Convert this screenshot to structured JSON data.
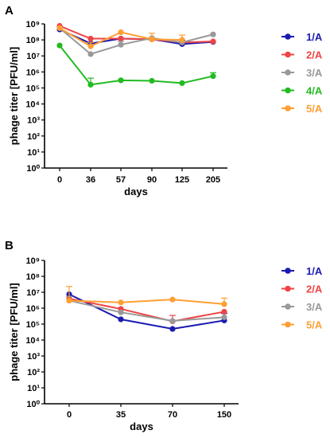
{
  "chart_data": [
    {
      "panel": "A",
      "type": "line",
      "title": "",
      "xlabel": "days",
      "ylabel": "phage titer [PFU/ml]",
      "ylog": true,
      "ylim_exp": [
        0,
        9
      ],
      "ytick_labels": [
        "10⁰",
        "10¹",
        "10²",
        "10³",
        "10⁴",
        "10⁵",
        "10⁶",
        "10⁷",
        "10⁸",
        "10⁹"
      ],
      "categories": [
        "0",
        "36",
        "57",
        "90",
        "125",
        "205"
      ],
      "legend_position": "right",
      "series": [
        {
          "name": "1/A",
          "color": "#1b1bb0",
          "values": [
            450000000,
            60000000,
            120000000,
            110000000,
            55000000,
            75000000
          ],
          "err": [
            0,
            0,
            0,
            0,
            40000000,
            0
          ]
        },
        {
          "name": "2/A",
          "color": "#ee4444",
          "values": [
            750000000,
            120000000,
            120000000,
            110000000,
            70000000,
            80000000
          ],
          "err": [
            0,
            0,
            0,
            0,
            0,
            0
          ]
        },
        {
          "name": "3/A",
          "color": "#999999",
          "values": [
            550000000,
            13000000,
            50000000,
            130000000,
            70000000,
            220000000
          ],
          "err": [
            0,
            0,
            30000000,
            0,
            0,
            0
          ]
        },
        {
          "name": "4/A",
          "color": "#22bb22",
          "values": [
            45000000,
            160000,
            300000,
            280000,
            200000,
            550000
          ],
          "err": [
            0,
            250000,
            0,
            0,
            0,
            350000
          ]
        },
        {
          "name": "5/A",
          "color": "#ff9f33",
          "values": [
            550000000,
            40000000,
            300000000,
            110000000,
            100000000,
            0
          ],
          "err": [
            0,
            30000000,
            0,
            150000000,
            100000000,
            0
          ]
        }
      ]
    },
    {
      "panel": "B",
      "type": "line",
      "title": "",
      "xlabel": "days",
      "ylabel": "phage titer [PFU/ml]",
      "ylog": true,
      "ylim_exp": [
        0,
        9
      ],
      "ytick_labels": [
        "10⁰",
        "10¹",
        "10²",
        "10³",
        "10⁴",
        "10⁵",
        "10⁶",
        "10⁷",
        "10⁸",
        "10⁹"
      ],
      "categories": [
        "0",
        "35",
        "70",
        "150"
      ],
      "legend_position": "right",
      "series": [
        {
          "name": "1/A",
          "color": "#1b1bb0",
          "values": [
            7500000,
            200000,
            50000,
            170000
          ],
          "err": [
            0,
            0,
            0,
            300000
          ]
        },
        {
          "name": "2/A",
          "color": "#ee4444",
          "values": [
            4000000,
            900000,
            150000,
            600000
          ],
          "err": [
            0,
            0,
            200000,
            0
          ]
        },
        {
          "name": "3/A",
          "color": "#999999",
          "values": [
            3000000,
            550000,
            160000,
            270000
          ],
          "err": [
            2500000,
            0,
            0,
            0
          ]
        },
        {
          "name": "5/A",
          "color": "#ff9f33",
          "values": [
            3000000,
            2300000,
            3500000,
            1800000
          ],
          "err": [
            20000000,
            0,
            0,
            2500000
          ]
        }
      ]
    }
  ]
}
